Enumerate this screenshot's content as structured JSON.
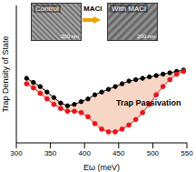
{
  "chart_data": {
    "type": "line",
    "x_label": "Eω (meV)",
    "y_label": "Trap Density of State",
    "x": [
      315,
      325,
      335,
      345,
      355,
      365,
      375,
      385,
      395,
      405,
      415,
      425,
      435,
      445,
      455,
      465,
      475,
      485,
      495,
      505,
      515,
      525,
      535,
      545
    ],
    "series": [
      {
        "name": "Control",
        "color": "#000000",
        "marker": "circle",
        "values": [
          47,
          44,
          41,
          37,
          33,
          29,
          27,
          28,
          30,
          32,
          35,
          37,
          39,
          41,
          43,
          45,
          46,
          47,
          48,
          49,
          50,
          51,
          52,
          53
        ]
      },
      {
        "name": "With MACl",
        "color": "#e8141c",
        "marker": "circle",
        "values": [
          43,
          40,
          36,
          32,
          28,
          25,
          23,
          23,
          22,
          19,
          14,
          10,
          8,
          8,
          10,
          13,
          17,
          22,
          28,
          35,
          41,
          46,
          50,
          52
        ]
      }
    ],
    "xlim": [
      300,
      550
    ],
    "xticks": [
      300,
      350,
      400,
      450,
      500,
      550
    ],
    "ylim": [
      0,
      100
    ],
    "tick_labels": "x",
    "grid": false,
    "annotations": [
      "MACl",
      "200 nm",
      "200 nm",
      "Trap Passivation"
    ]
  }
}
